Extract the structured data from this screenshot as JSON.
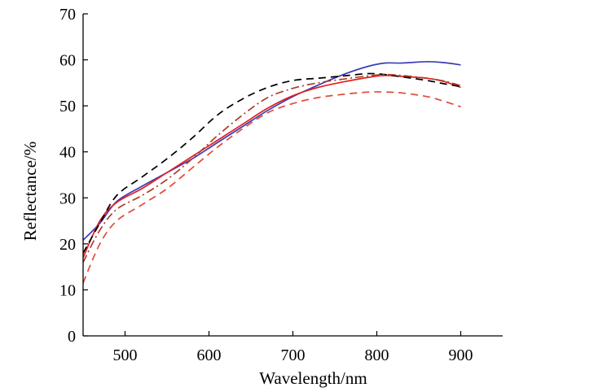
{
  "chart_data": {
    "type": "line",
    "title": "",
    "xlabel": "Wavelength/nm",
    "ylabel": "Reflectance/%",
    "xlim": [
      450,
      950
    ],
    "ylim": [
      0,
      70
    ],
    "xticks": [
      500,
      600,
      700,
      800,
      900
    ],
    "yticks": [
      0,
      10,
      20,
      30,
      40,
      50,
      60,
      70
    ],
    "grid": false,
    "legend": "none",
    "series": [
      {
        "color": "#3c3cb4",
        "dash": "solid",
        "x": [
          450,
          470,
          490,
          520,
          550,
          580,
          610,
          640,
          670,
          700,
          730,
          760,
          790,
          810,
          830,
          860,
          880,
          900
        ],
        "y": [
          20.8,
          24.5,
          29.2,
          32.5,
          35.5,
          38.5,
          42.0,
          45.5,
          49.0,
          52.0,
          54.5,
          56.8,
          58.6,
          59.3,
          59.3,
          59.6,
          59.4,
          58.9
        ]
      },
      {
        "color": "#e02020",
        "dash": "solid",
        "x": [
          450,
          470,
          490,
          520,
          550,
          580,
          610,
          640,
          670,
          700,
          730,
          760,
          790,
          810,
          830,
          860,
          880,
          900
        ],
        "y": [
          17.0,
          25.0,
          29.0,
          32.0,
          35.5,
          39.0,
          42.5,
          46.0,
          49.5,
          52.2,
          54.0,
          55.2,
          56.2,
          56.6,
          56.4,
          56.0,
          55.3,
          54.0
        ]
      },
      {
        "color": "#000000",
        "dash": "dashed",
        "x": [
          450,
          470,
          490,
          520,
          550,
          580,
          610,
          640,
          670,
          700,
          730,
          760,
          790,
          810,
          830,
          860,
          880,
          900
        ],
        "y": [
          18.0,
          24.5,
          30.5,
          34.5,
          38.5,
          43.0,
          48.0,
          51.5,
          54.0,
          55.5,
          56.0,
          56.5,
          57.0,
          56.8,
          56.3,
          55.5,
          54.8,
          54.2
        ]
      },
      {
        "color": "#b03a28",
        "dash": "dash-dot",
        "x": [
          450,
          470,
          490,
          520,
          550,
          580,
          610,
          640,
          670,
          700,
          730,
          760,
          790,
          810,
          830,
          860,
          880,
          900
        ],
        "y": [
          16.0,
          23.0,
          27.5,
          30.5,
          34.0,
          38.5,
          43.5,
          48.0,
          51.8,
          53.8,
          55.0,
          55.8,
          56.5,
          56.8,
          56.6,
          56.0,
          55.4,
          54.4
        ]
      },
      {
        "color": "#e04a3a",
        "dash": "dashed",
        "x": [
          450,
          470,
          490,
          520,
          550,
          580,
          610,
          640,
          670,
          700,
          730,
          760,
          790,
          810,
          830,
          860,
          880,
          900
        ],
        "y": [
          11.5,
          20.0,
          25.0,
          28.5,
          32.0,
          36.5,
          41.0,
          45.0,
          48.5,
          50.5,
          51.8,
          52.5,
          53.0,
          53.0,
          52.8,
          52.0,
          51.0,
          49.8
        ]
      }
    ]
  }
}
